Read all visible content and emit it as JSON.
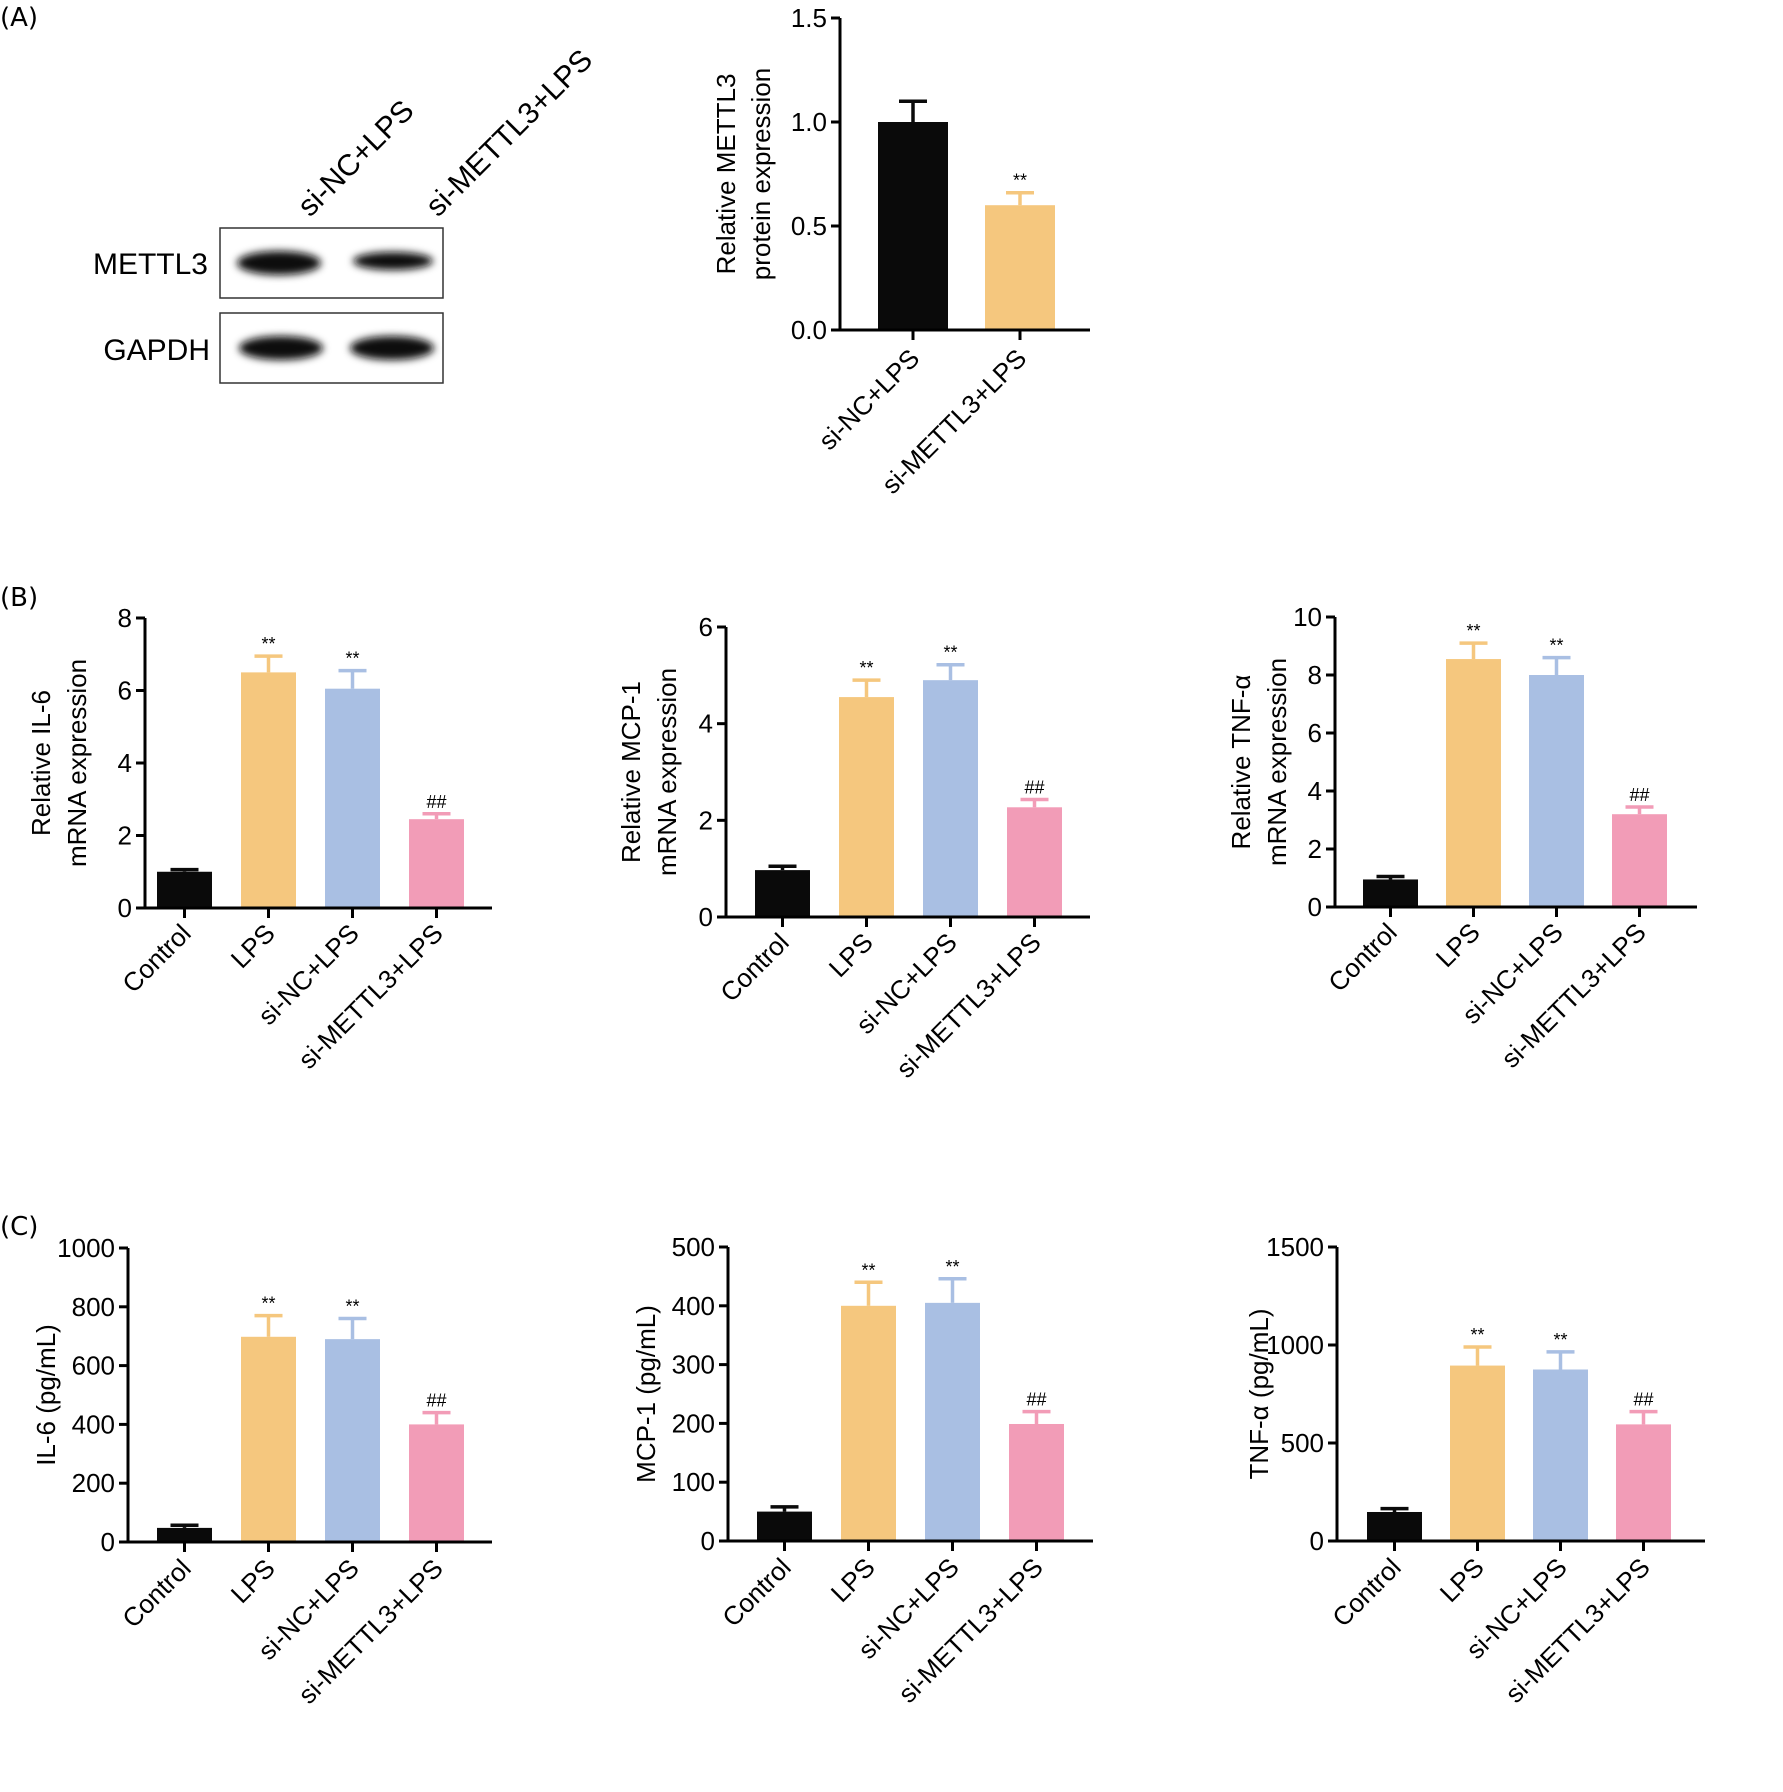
{
  "figure": {
    "panels": [
      "(A)",
      "(B)",
      "(C)"
    ],
    "western_blot": {
      "lanes": [
        "si-NC+LPS",
        "si-METTL3+LPS"
      ],
      "rows": [
        "METTL3",
        "GAPDH"
      ]
    },
    "colors": {
      "Control": "#0a0a0a",
      "LPS": "#f5c77e",
      "si-NC+LPS": "#a9bfe3",
      "si-METTL3+LPS": "#f29cb7"
    }
  },
  "chart_data": [
    {
      "id": "A",
      "type": "bar",
      "title": "",
      "xlabel": "",
      "ylabel": [
        "Relative METTL3",
        "protein expression"
      ],
      "categories": [
        "si-NC+LPS",
        "si-METTL3+LPS"
      ],
      "values": [
        1.0,
        0.6
      ],
      "error_upper": [
        1.1,
        0.66
      ],
      "annotations": [
        "",
        "**"
      ],
      "colors": [
        "#0a0a0a",
        "#f5c77e"
      ],
      "ylim": [
        0,
        1.5
      ],
      "yticks": [
        0.0,
        0.5,
        1.0,
        1.5
      ],
      "ytick_labels": [
        "0.0",
        "0.5",
        "1.0",
        "1.5"
      ],
      "grid": false
    },
    {
      "id": "B1",
      "type": "bar",
      "xlabel": "",
      "ylabel": [
        "Relative IL-6",
        "mRNA expression"
      ],
      "categories": [
        "Control",
        "LPS",
        "si-NC+LPS",
        "si-METTL3+LPS"
      ],
      "values": [
        1.0,
        6.5,
        6.05,
        2.45
      ],
      "error_upper": [
        1.06,
        6.95,
        6.55,
        2.6
      ],
      "annotations": [
        "",
        "**",
        "**",
        "##"
      ],
      "colors": [
        "#0a0a0a",
        "#f5c77e",
        "#a9bfe3",
        "#f29cb7"
      ],
      "ylim": [
        0,
        8
      ],
      "yticks": [
        0,
        2,
        4,
        6,
        8
      ],
      "ytick_labels": [
        "0",
        "2",
        "4",
        "6",
        "8"
      ],
      "grid": false
    },
    {
      "id": "B2",
      "type": "bar",
      "xlabel": "",
      "ylabel": [
        "Relative MCP-1",
        "mRNA expression"
      ],
      "categories": [
        "Control",
        "LPS",
        "si-NC+LPS",
        "si-METTL3+LPS"
      ],
      "values": [
        0.97,
        4.55,
        4.9,
        2.27
      ],
      "error_upper": [
        1.05,
        4.9,
        5.22,
        2.43
      ],
      "annotations": [
        "",
        "**",
        "**",
        "##"
      ],
      "colors": [
        "#0a0a0a",
        "#f5c77e",
        "#a9bfe3",
        "#f29cb7"
      ],
      "ylim": [
        0,
        6
      ],
      "yticks": [
        0,
        2,
        4,
        6
      ],
      "ytick_labels": [
        "0",
        "2",
        "4",
        "6"
      ],
      "grid": false
    },
    {
      "id": "B3",
      "type": "bar",
      "xlabel": "",
      "ylabel": [
        "Relative TNF-α",
        "mRNA expression"
      ],
      "categories": [
        "Control",
        "LPS",
        "si-NC+LPS",
        "si-METTL3+LPS"
      ],
      "values": [
        0.95,
        8.55,
        8.0,
        3.2
      ],
      "error_upper": [
        1.05,
        9.1,
        8.6,
        3.45
      ],
      "annotations": [
        "",
        "**",
        "**",
        "##"
      ],
      "colors": [
        "#0a0a0a",
        "#f5c77e",
        "#a9bfe3",
        "#f29cb7"
      ],
      "ylim": [
        0,
        10
      ],
      "yticks": [
        0,
        2,
        4,
        6,
        8,
        10
      ],
      "ytick_labels": [
        "0",
        "2",
        "4",
        "6",
        "8",
        "10"
      ],
      "grid": false
    },
    {
      "id": "C1",
      "type": "bar",
      "xlabel": "",
      "ylabel": [
        "IL-6 (pg/mL)"
      ],
      "categories": [
        "Control",
        "LPS",
        "si-NC+LPS",
        "si-METTL3+LPS"
      ],
      "values": [
        48,
        698,
        690,
        400
      ],
      "error_upper": [
        57,
        770,
        760,
        440
      ],
      "annotations": [
        "",
        "**",
        "**",
        "##"
      ],
      "colors": [
        "#0a0a0a",
        "#f5c77e",
        "#a9bfe3",
        "#f29cb7"
      ],
      "ylim": [
        0,
        1000
      ],
      "yticks": [
        0,
        200,
        400,
        600,
        800,
        1000
      ],
      "ytick_labels": [
        "0",
        "200",
        "400",
        "600",
        "800",
        "1000"
      ],
      "grid": false
    },
    {
      "id": "C2",
      "type": "bar",
      "xlabel": "",
      "ylabel": [
        "MCP-1 (pg/mL)"
      ],
      "categories": [
        "Control",
        "LPS",
        "si-NC+LPS",
        "si-METTL3+LPS"
      ],
      "values": [
        50,
        400,
        405,
        199
      ],
      "error_upper": [
        58,
        440,
        446,
        220
      ],
      "annotations": [
        "",
        "**",
        "**",
        "##"
      ],
      "colors": [
        "#0a0a0a",
        "#f5c77e",
        "#a9bfe3",
        "#f29cb7"
      ],
      "ylim": [
        0,
        500
      ],
      "yticks": [
        0,
        100,
        200,
        300,
        400,
        500
      ],
      "ytick_labels": [
        "0",
        "100",
        "200",
        "300",
        "400",
        "500"
      ],
      "grid": false
    },
    {
      "id": "C3",
      "type": "bar",
      "xlabel": "",
      "ylabel": [
        "TNF-α (pg/mL)"
      ],
      "categories": [
        "Control",
        "LPS",
        "si-NC+LPS",
        "si-METTL3+LPS"
      ],
      "values": [
        148,
        895,
        875,
        595
      ],
      "error_upper": [
        165,
        990,
        965,
        660
      ],
      "annotations": [
        "",
        "**",
        "**",
        "##"
      ],
      "colors": [
        "#0a0a0a",
        "#f5c77e",
        "#a9bfe3",
        "#f29cb7"
      ],
      "ylim": [
        0,
        1500
      ],
      "yticks": [
        0,
        500,
        1000,
        1500
      ],
      "ytick_labels": [
        "0",
        "500",
        "1000",
        "1500"
      ],
      "grid": false
    }
  ]
}
